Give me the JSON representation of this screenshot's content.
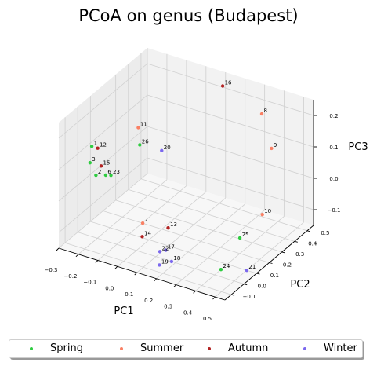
{
  "chart_data": {
    "type": "scatter",
    "projection": "3d",
    "title": "PCoA on genus (Budapest)",
    "xlabel": "PC1",
    "ylabel": "PC2",
    "zlabel": "PC3",
    "xticks": [
      "−0.3",
      "−0.2",
      "−0.1",
      "0.0",
      "0.1",
      "0.2",
      "0.3",
      "0.4",
      "0.5"
    ],
    "yticks": [
      "−0.1",
      "0.0",
      "0.1",
      "0.2",
      "0.3",
      "0.4",
      "0.5"
    ],
    "zticks": [
      "−0.1",
      "0.0",
      "0.1",
      "0.2"
    ],
    "xlim": [
      -0.3,
      0.55
    ],
    "ylim": [
      -0.15,
      0.55
    ],
    "zlim": [
      -0.15,
      0.25
    ],
    "grid": true,
    "legend_position": "bottom",
    "series": [
      {
        "name": "Spring",
        "color": "#2ecc40",
        "points": [
          {
            "label": "1",
            "x": -0.28,
            "y": 0.08,
            "z": 0.1
          },
          {
            "label": "3",
            "x": -0.27,
            "y": 0.05,
            "z": 0.06
          },
          {
            "label": "2",
            "x": -0.22,
            "y": 0.02,
            "z": 0.04
          },
          {
            "label": "6",
            "x": -0.17,
            "y": 0.02,
            "z": 0.05
          },
          {
            "label": "23",
            "x": -0.15,
            "y": 0.03,
            "z": 0.05
          },
          {
            "label": "26",
            "x": -0.08,
            "y": 0.15,
            "z": 0.12
          },
          {
            "label": "25",
            "x": 0.4,
            "y": 0.2,
            "z": -0.1
          },
          {
            "label": "24",
            "x": 0.4,
            "y": 0.05,
            "z": -0.15
          }
        ]
      },
      {
        "name": "Summer",
        "color": "#fa8064",
        "points": [
          {
            "label": "11",
            "x": -0.12,
            "y": 0.2,
            "z": 0.15
          },
          {
            "label": "7",
            "x": 0.0,
            "y": 0.05,
            "z": -0.08
          },
          {
            "label": "8",
            "x": 0.35,
            "y": 0.45,
            "z": 0.2
          },
          {
            "label": "9",
            "x": 0.4,
            "y": 0.45,
            "z": 0.1
          },
          {
            "label": "10",
            "x": 0.45,
            "y": 0.3,
            "z": -0.05
          }
        ]
      },
      {
        "name": "Autumn",
        "color": "#b22222",
        "points": [
          {
            "label": "12",
            "x": -0.25,
            "y": 0.08,
            "z": 0.1
          },
          {
            "label": "15",
            "x": -0.2,
            "y": 0.03,
            "z": 0.07
          },
          {
            "label": "16",
            "x": 0.15,
            "y": 0.45,
            "z": 0.25
          },
          {
            "label": "13",
            "x": 0.13,
            "y": 0.05,
            "z": -0.07
          },
          {
            "label": "14",
            "x": 0.03,
            "y": 0.0,
            "z": -0.1
          }
        ]
      },
      {
        "name": "Winter",
        "color": "#7b68ee",
        "points": [
          {
            "label": "20",
            "x": 0.0,
            "y": 0.2,
            "z": 0.1
          },
          {
            "label": "17",
            "x": 0.15,
            "y": 0.0,
            "z": -0.12
          },
          {
            "label": "22",
            "x": 0.12,
            "y": 0.0,
            "z": -0.13
          },
          {
            "label": "18",
            "x": 0.18,
            "y": 0.0,
            "z": -0.15
          },
          {
            "label": "19",
            "x": 0.15,
            "y": -0.05,
            "z": -0.15
          },
          {
            "label": "21",
            "x": 0.5,
            "y": 0.1,
            "z": -0.15
          }
        ]
      }
    ]
  }
}
